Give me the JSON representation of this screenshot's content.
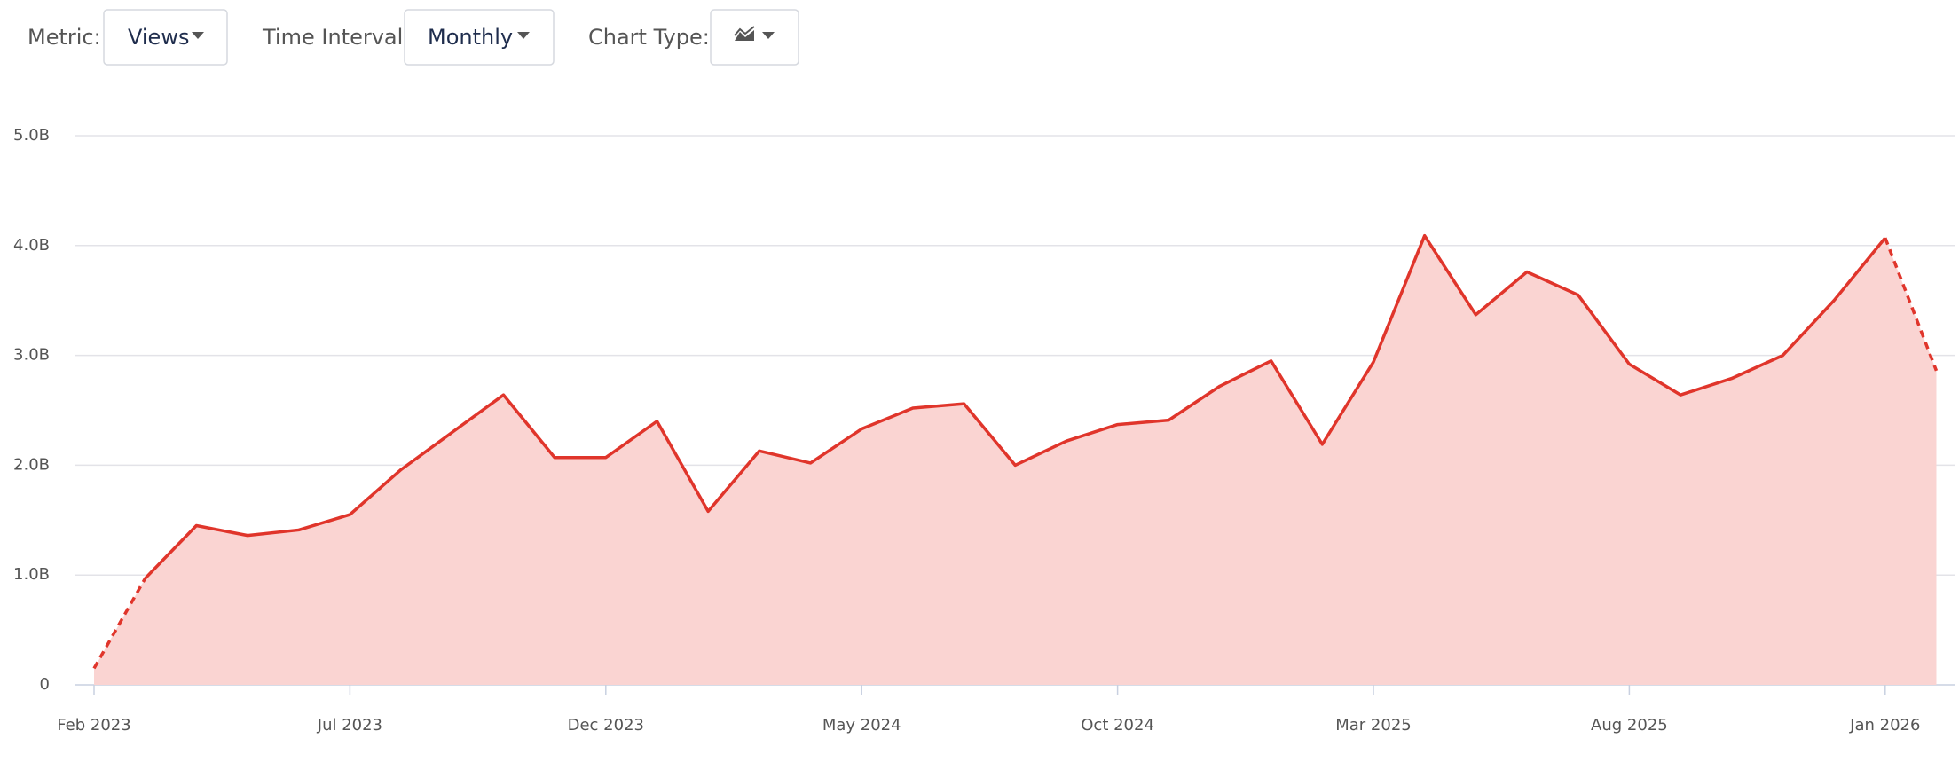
{
  "controls": {
    "metric_label": "Metric:",
    "metric_value": "Views",
    "interval_label": "Time Interval:",
    "interval_value": "Monthly",
    "chart_type_label": "Chart Type:"
  },
  "chart_data": {
    "type": "area",
    "categories": [
      "Feb 2023",
      null,
      null,
      null,
      null,
      "Jul 2023",
      null,
      null,
      null,
      null,
      "Dec 2023",
      null,
      null,
      null,
      null,
      "May 2024",
      null,
      null,
      null,
      null,
      "Oct 2024",
      null,
      null,
      null,
      null,
      "Mar 2025",
      null,
      null,
      null,
      null,
      "Aug 2025",
      null,
      null,
      null,
      null,
      "Jan 2026",
      null
    ],
    "series": [
      {
        "name": "Views",
        "color": "#e0352b",
        "values": [
          0.15,
          0.97,
          1.45,
          1.36,
          1.41,
          1.55,
          1.96,
          2.3,
          2.64,
          2.07,
          2.07,
          2.4,
          1.58,
          2.13,
          2.02,
          2.33,
          2.52,
          2.56,
          2.0,
          2.22,
          2.37,
          2.41,
          2.72,
          2.95,
          2.19,
          2.94,
          4.09,
          3.37,
          3.76,
          3.55,
          2.92,
          2.64,
          2.79,
          3.0,
          3.5,
          4.07,
          2.86
        ]
      }
    ],
    "ylim": [
      0,
      5
    ],
    "yticks": [
      0,
      {
        "value": 1,
        "label": "1.0B"
      },
      {
        "value": 2,
        "label": "2.0B"
      },
      {
        "value": 3,
        "label": "3.0B"
      },
      {
        "value": 4,
        "label": "4.0B"
      },
      {
        "value": 5,
        "label": "5.0B"
      }
    ],
    "grid": true,
    "fill_color": "#fad4d2"
  }
}
